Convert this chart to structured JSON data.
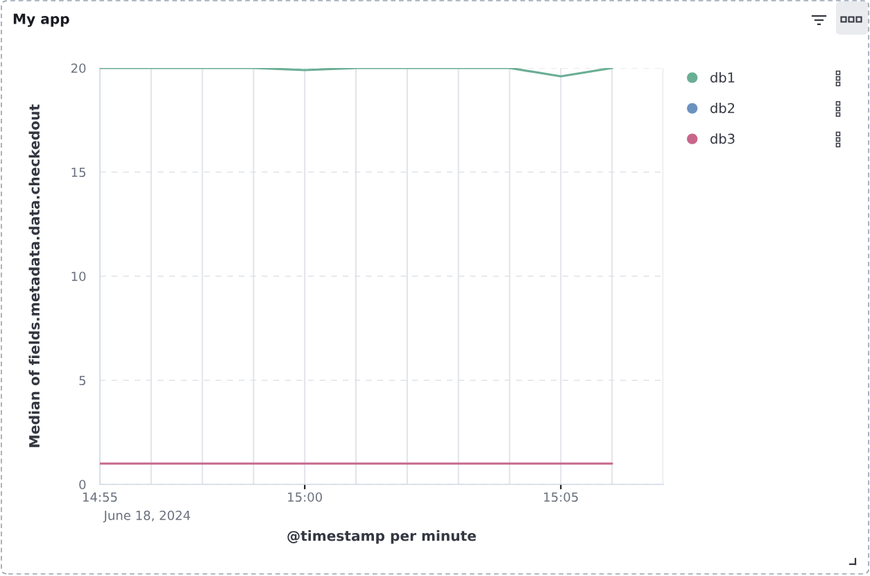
{
  "chart_data": {
    "type": "line",
    "title": "My app",
    "xlabel": "@timestamp per minute",
    "ylabel": "Median of fields.metadata.data.checkedout",
    "x": [
      "2024-06-18T14:56",
      "2024-06-18T14:57",
      "2024-06-18T14:58",
      "2024-06-18T14:59",
      "2024-06-18T15:00",
      "2024-06-18T15:01",
      "2024-06-18T15:02",
      "2024-06-18T15:03",
      "2024-06-18T15:04",
      "2024-06-18T15:05",
      "2024-06-18T15:06"
    ],
    "series": [
      {
        "name": "db1",
        "color": "#6aae94",
        "values": [
          20,
          20,
          20,
          20,
          19.9,
          20,
          20,
          20,
          20,
          19.6,
          20
        ]
      },
      {
        "name": "db2",
        "color": "#6b92bf",
        "values": [
          null,
          null,
          null,
          null,
          null,
          null,
          null,
          null,
          null,
          null,
          null
        ]
      },
      {
        "name": "db3",
        "color": "#c7668a",
        "values": [
          1,
          1,
          1,
          1,
          1,
          1,
          1,
          1,
          1,
          1,
          1
        ]
      }
    ],
    "xlim": [
      "2024-06-18T14:56",
      "2024-06-18T15:07"
    ],
    "xticks": [
      {
        "value": "2024-06-18T14:56",
        "label": "14:55"
      },
      {
        "value": "2024-06-18T14:57",
        "label": null
      },
      {
        "value": "2024-06-18T14:58",
        "label": null
      },
      {
        "value": "2024-06-18T14:59",
        "label": null
      },
      {
        "value": "2024-06-18T15:00",
        "label": "15:00"
      },
      {
        "value": "2024-06-18T15:01",
        "label": null
      },
      {
        "value": "2024-06-18T15:02",
        "label": null
      },
      {
        "value": "2024-06-18T15:03",
        "label": null
      },
      {
        "value": "2024-06-18T15:04",
        "label": null
      },
      {
        "value": "2024-06-18T15:05",
        "label": "15:05"
      },
      {
        "value": "2024-06-18T15:06",
        "label": null
      },
      {
        "value": "2024-06-18T15:07",
        "label": null
      }
    ],
    "ylim": [
      0,
      20
    ],
    "yticks": [
      0,
      5,
      10,
      15,
      20
    ],
    "grid": true,
    "legend": "right",
    "annotations": [
      "June 18, 2024"
    ]
  }
}
